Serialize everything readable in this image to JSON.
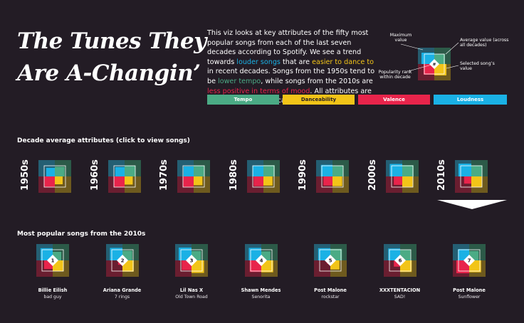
{
  "header": {
    "title_line1": "The Tunes They",
    "title_line2": "Are A-Changin’"
  },
  "intro": {
    "p1": "This viz looks at key attributes of the fifty most popular songs from each of the last seven decades according to Spotify. We see a trend towards ",
    "h1": "louder songs",
    "p2": " that are ",
    "h2": "easier to dance to",
    "p3": " in recent decades. Songs from the 1950s tend to be ",
    "h3": "lower tempo",
    "p4": ", while songs from the 2010s are ",
    "h4": "less positive in terms of mood",
    "p5": ". All attributes are measured on a 0-1 scale."
  },
  "legend": {
    "tempo": "Tempo",
    "danceability": "Danceability",
    "valence": "Valence",
    "loudness": "Loudness"
  },
  "key": {
    "maximum": "Maximum value",
    "average": "Average value (across all decades)",
    "selected": "Selected song’s value",
    "rank": "Popularity rank within decade",
    "rank_symbol": "#"
  },
  "colors": {
    "tempo": "#4bab85",
    "danceability": "#f2c418",
    "valence": "#e8244b",
    "loudness": "#1ab1e5",
    "background": "#231c25"
  },
  "decades_section": {
    "heading": "Decade average attributes (click to view songs)",
    "selected": "2010s",
    "items": [
      {
        "label": "1950s",
        "tempo": 0.62,
        "danceability": 0.5,
        "valence": 0.66,
        "loudness": 0.55
      },
      {
        "label": "1960s",
        "tempo": 0.68,
        "danceability": 0.52,
        "valence": 0.68,
        "loudness": 0.6
      },
      {
        "label": "1970s",
        "tempo": 0.7,
        "danceability": 0.56,
        "valence": 0.66,
        "loudness": 0.64
      },
      {
        "label": "1980s",
        "tempo": 0.72,
        "danceability": 0.58,
        "valence": 0.62,
        "loudness": 0.7
      },
      {
        "label": "1990s",
        "tempo": 0.7,
        "danceability": 0.62,
        "valence": 0.58,
        "loudness": 0.74
      },
      {
        "label": "2000s",
        "tempo": 0.72,
        "danceability": 0.66,
        "valence": 0.54,
        "loudness": 0.8
      },
      {
        "label": "2010s",
        "tempo": 0.7,
        "danceability": 0.68,
        "valence": 0.46,
        "loudness": 0.82
      }
    ]
  },
  "songs_section": {
    "heading": "Most popular songs from the 2010s",
    "songs": [
      {
        "rank": "1",
        "artist": "Billie Eilish",
        "track": "bad guy",
        "tempo": 0.55,
        "danceability": 0.7,
        "valence": 0.55,
        "loudness": 0.78
      },
      {
        "rank": "2",
        "artist": "Ariana Grande",
        "track": "7 rings",
        "tempo": 0.62,
        "danceability": 0.72,
        "valence": 0.28,
        "loudness": 0.8
      },
      {
        "rank": "3",
        "artist": "Lil Nas X",
        "track": "Old Town Road",
        "tempo": 0.6,
        "danceability": 0.8,
        "valence": 0.62,
        "loudness": 0.82
      },
      {
        "rank": "4",
        "artist": "Shawn Mendes",
        "track": "Senorita",
        "tempo": 0.58,
        "danceability": 0.76,
        "valence": 0.74,
        "loudness": 0.8
      },
      {
        "rank": "5",
        "artist": "Post Malone",
        "track": "rockstar",
        "tempo": 0.74,
        "danceability": 0.58,
        "valence": 0.22,
        "loudness": 0.78
      },
      {
        "rank": "6",
        "artist": "XXXTENTACION",
        "track": "SAD!",
        "tempo": 0.66,
        "danceability": 0.74,
        "valence": 0.4,
        "loudness": 0.76
      },
      {
        "rank": "7",
        "artist": "Post Malone",
        "track": "Sunflower",
        "tempo": 0.6,
        "danceability": 0.76,
        "valence": 0.82,
        "loudness": 0.72
      }
    ]
  }
}
